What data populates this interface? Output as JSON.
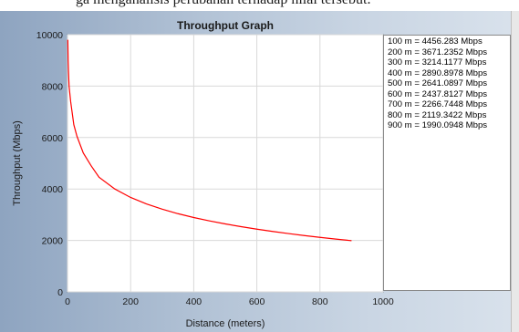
{
  "document": {
    "partial_text": "ga menganalisis perubahan terhadap nilai tersebut."
  },
  "colors": {
    "line": "#ff0000",
    "axes_bg": "#ffffff",
    "figure_bg": "#b3c3d6",
    "grid": "#d9d9d9",
    "text": "#1a1a1a"
  },
  "legend": {
    "entries": [
      "100 m = 4456.283 Mbps",
      "200 m = 3671.2352 Mbps",
      "300 m = 3214.1177 Mbps",
      "400 m = 2890.8978 Mbps",
      "500 m = 2641.0897 Mbps",
      "600 m = 2437.8127 Mbps",
      "700 m = 2266.7448 Mbps",
      "800 m = 2119.3422 Mbps",
      "900 m = 1990.0948 Mbps"
    ]
  },
  "chart_data": {
    "type": "line",
    "title": "Throughput Graph",
    "xlabel": "Distance (meters)",
    "ylabel": "Throughput (Mbps)",
    "xlim": [
      0,
      1000
    ],
    "ylim": [
      0,
      10000
    ],
    "xticks": [
      0,
      200,
      400,
      600,
      800,
      1000
    ],
    "yticks": [
      0,
      2000,
      4000,
      6000,
      8000,
      10000
    ],
    "grid": true,
    "series": [
      {
        "x": [
          1,
          2,
          3,
          5,
          10,
          20,
          30,
          50,
          75,
          100,
          150,
          200,
          250,
          300,
          350,
          400,
          450,
          500,
          550,
          600,
          650,
          700,
          750,
          800,
          850,
          900
        ],
        "y": [
          9800,
          9000,
          8600,
          8000,
          7400,
          6500,
          6050,
          5400,
          4900,
          4456.283,
          4000,
          3671.2352,
          3420,
          3214.1177,
          3040,
          2890.8978,
          2760,
          2641.0897,
          2535,
          2437.8127,
          2350,
          2266.7448,
          2190,
          2119.3422,
          2052,
          1990.0948
        ]
      }
    ]
  }
}
